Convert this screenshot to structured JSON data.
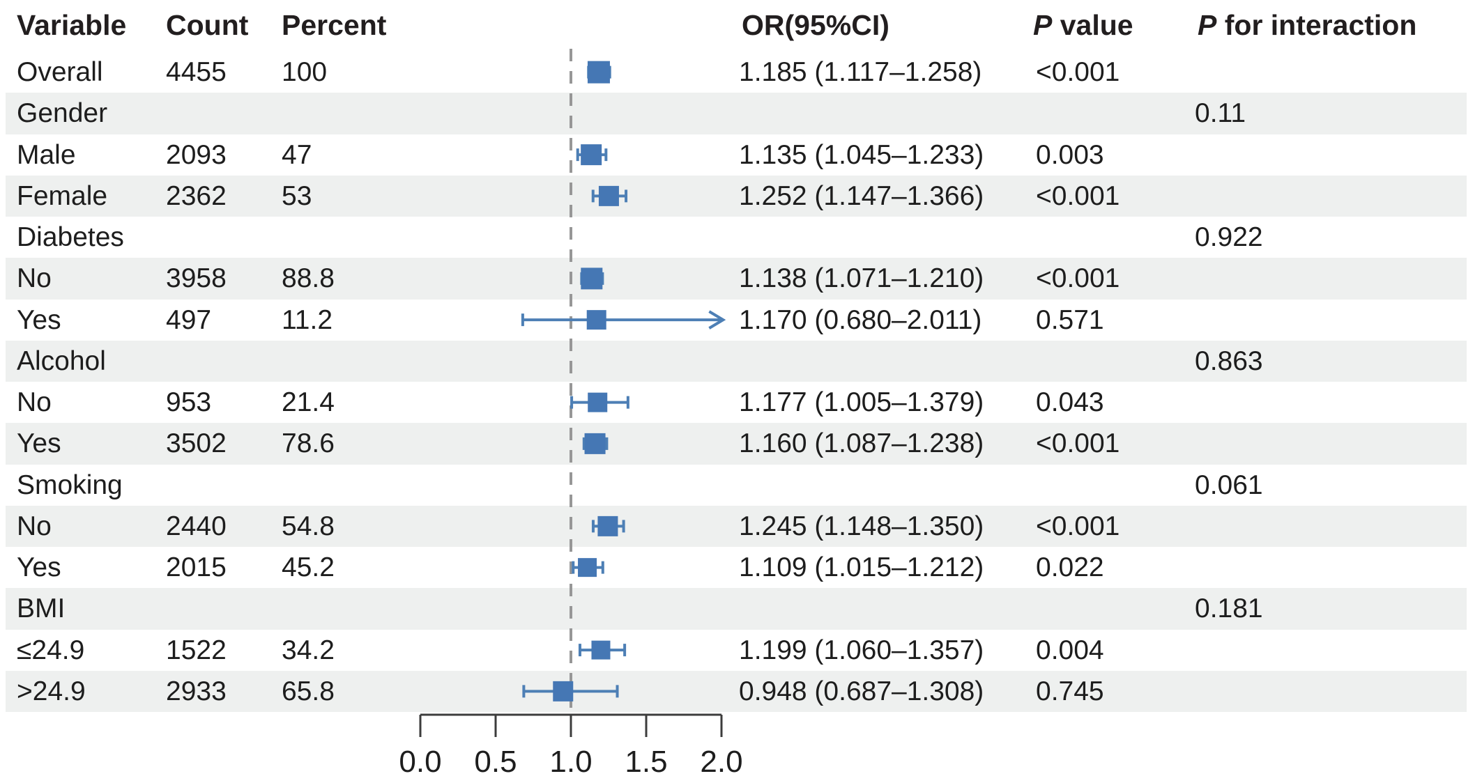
{
  "figure": {
    "columns": {
      "variable": "Variable",
      "count": "Count",
      "percent": "Percent",
      "or_ci": "OR(95%CI)",
      "p_italic": "P",
      "p_rest": " value",
      "p_int_italic": "P",
      "p_int_rest": " for interaction"
    },
    "colors": {
      "band": "#eef0ef",
      "marker_box": "#4577b4",
      "ci_line": "#4d7fb5",
      "reference_line": "#979797",
      "axis": "#3c3c3c",
      "header_text": "#221e1f",
      "body_text": "#1d1d1d"
    }
  },
  "chart_data": {
    "type": "forest",
    "title": "",
    "xlabel": "",
    "x_axis": {
      "min": 0.0,
      "max": 2.0,
      "ticks": [
        0.0,
        0.5,
        1.0,
        1.5,
        2.0
      ],
      "tick_labels": [
        "0.0",
        "0.5",
        "1.0",
        "1.5",
        "2.0"
      ],
      "reference_line": 1.0
    },
    "rows": [
      {
        "variable": "Overall",
        "count": "4455",
        "percent": "100",
        "or": 1.185,
        "ci_low": 1.117,
        "ci_high": 1.258,
        "or_ci": "1.185 (1.117–1.258)",
        "p": "<0.001",
        "p_interaction": "",
        "is_group": false,
        "arrow_right": false,
        "box_size": 32
      },
      {
        "variable": "Gender",
        "count": "",
        "percent": "",
        "or": null,
        "ci_low": null,
        "ci_high": null,
        "or_ci": "",
        "p": "",
        "p_interaction": "0.11",
        "is_group": true,
        "arrow_right": false,
        "box_size": 0
      },
      {
        "variable": "Male",
        "count": "2093",
        "percent": "47",
        "or": 1.135,
        "ci_low": 1.045,
        "ci_high": 1.233,
        "or_ci": "1.135 (1.045–1.233)",
        "p": "0.003",
        "p_interaction": "",
        "is_group": false,
        "arrow_right": false,
        "box_size": 30
      },
      {
        "variable": "Female",
        "count": "2362",
        "percent": "53",
        "or": 1.252,
        "ci_low": 1.147,
        "ci_high": 1.366,
        "or_ci": "1.252 (1.147–1.366)",
        "p": "<0.001",
        "p_interaction": "",
        "is_group": false,
        "arrow_right": false,
        "box_size": 29
      },
      {
        "variable": "Diabetes",
        "count": "",
        "percent": "",
        "or": null,
        "ci_low": null,
        "ci_high": null,
        "or_ci": "",
        "p": "",
        "p_interaction": "0.922",
        "is_group": true,
        "arrow_right": false,
        "box_size": 0
      },
      {
        "variable": "No",
        "count": "3958",
        "percent": "88.8",
        "or": 1.138,
        "ci_low": 1.071,
        "ci_high": 1.21,
        "or_ci": "1.138 (1.071–1.210)",
        "p": "<0.001",
        "p_interaction": "",
        "is_group": false,
        "arrow_right": false,
        "box_size": 31
      },
      {
        "variable": "Yes",
        "count": "497",
        "percent": "11.2",
        "or": 1.17,
        "ci_low": 0.68,
        "ci_high": 2.011,
        "or_ci": "1.170 (0.680–2.011)",
        "p": "0.571",
        "p_interaction": "",
        "is_group": false,
        "arrow_right": true,
        "box_size": 28
      },
      {
        "variable": "Alcohol",
        "count": "",
        "percent": "",
        "or": null,
        "ci_low": null,
        "ci_high": null,
        "or_ci": "",
        "p": "",
        "p_interaction": "0.863",
        "is_group": true,
        "arrow_right": false,
        "box_size": 0
      },
      {
        "variable": "No",
        "count": "953",
        "percent": "21.4",
        "or": 1.177,
        "ci_low": 1.005,
        "ci_high": 1.379,
        "or_ci": "1.177 (1.005–1.379)",
        "p": "0.043",
        "p_interaction": "",
        "is_group": false,
        "arrow_right": false,
        "box_size": 28
      },
      {
        "variable": "Yes",
        "count": "3502",
        "percent": "78.6",
        "or": 1.16,
        "ci_low": 1.087,
        "ci_high": 1.238,
        "or_ci": "1.160 (1.087–1.238)",
        "p": "<0.001",
        "p_interaction": "",
        "is_group": false,
        "arrow_right": false,
        "box_size": 30
      },
      {
        "variable": "Smoking",
        "count": "",
        "percent": "",
        "or": null,
        "ci_low": null,
        "ci_high": null,
        "or_ci": "",
        "p": "",
        "p_interaction": "0.061",
        "is_group": true,
        "arrow_right": false,
        "box_size": 0
      },
      {
        "variable": "No",
        "count": "2440",
        "percent": "54.8",
        "or": 1.245,
        "ci_low": 1.148,
        "ci_high": 1.35,
        "or_ci": "1.245 (1.148–1.350)",
        "p": "<0.001",
        "p_interaction": "",
        "is_group": false,
        "arrow_right": false,
        "box_size": 29
      },
      {
        "variable": "Yes",
        "count": "2015",
        "percent": "45.2",
        "or": 1.109,
        "ci_low": 1.015,
        "ci_high": 1.212,
        "or_ci": "1.109 (1.015–1.212)",
        "p": "0.022",
        "p_interaction": "",
        "is_group": false,
        "arrow_right": false,
        "box_size": 27
      },
      {
        "variable": "BMI",
        "count": "",
        "percent": "",
        "or": null,
        "ci_low": null,
        "ci_high": null,
        "or_ci": "",
        "p": "",
        "p_interaction": "0.181",
        "is_group": true,
        "arrow_right": false,
        "box_size": 0
      },
      {
        "variable": "≤24.9",
        "count": "1522",
        "percent": "34.2",
        "or": 1.199,
        "ci_low": 1.06,
        "ci_high": 1.357,
        "or_ci": "1.199 (1.060–1.357)",
        "p": "0.004",
        "p_interaction": "",
        "is_group": false,
        "arrow_right": false,
        "box_size": 27
      },
      {
        "variable": ">24.9",
        "count": "2933",
        "percent": "65.8",
        "or": 0.948,
        "ci_low": 0.687,
        "ci_high": 1.308,
        "or_ci": "0.948 (0.687–1.308)",
        "p": "0.745",
        "p_interaction": "",
        "is_group": false,
        "arrow_right": false,
        "box_size": 29
      }
    ]
  }
}
